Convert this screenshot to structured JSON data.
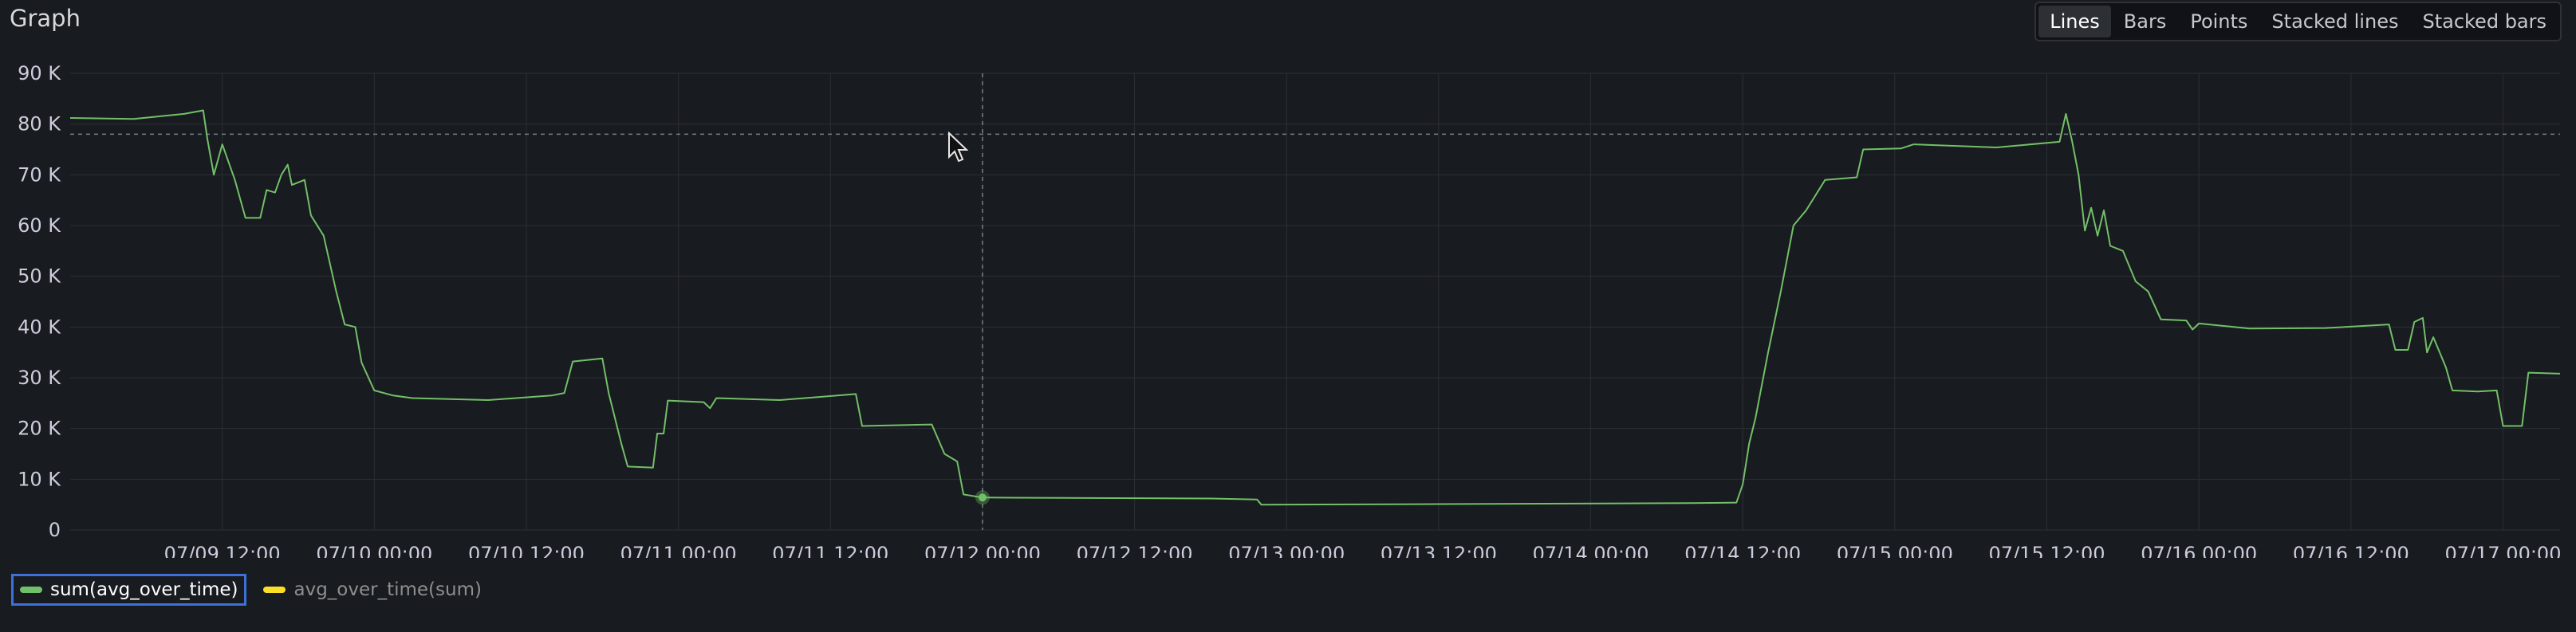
{
  "panel": {
    "title": "Graph",
    "modes": [
      "Lines",
      "Bars",
      "Points",
      "Stacked lines",
      "Stacked bars"
    ],
    "active_mode": "Lines"
  },
  "colors": {
    "background": "#181b1f",
    "grid": "#2c2f36",
    "series_green": "#73bf69",
    "series_yellow": "#fade2a",
    "legend_selected_border": "#3d71d9"
  },
  "chart_data": {
    "type": "line",
    "x_axis": {
      "type": "time",
      "range": [
        "2022-07-09 00:00",
        "2022-07-17 04:30"
      ],
      "ticks": [
        {
          "t": "2022-07-09 12:00",
          "label": "07/09 12:00"
        },
        {
          "t": "2022-07-10 00:00",
          "label": "07/10 00:00"
        },
        {
          "t": "2022-07-10 12:00",
          "label": "07/10 12:00"
        },
        {
          "t": "2022-07-11 00:00",
          "label": "07/11 00:00"
        },
        {
          "t": "2022-07-11 12:00",
          "label": "07/11 12:00"
        },
        {
          "t": "2022-07-12 00:00",
          "label": "07/12 00:00"
        },
        {
          "t": "2022-07-12 12:00",
          "label": "07/12 12:00"
        },
        {
          "t": "2022-07-13 00:00",
          "label": "07/13 00:00"
        },
        {
          "t": "2022-07-13 12:00",
          "label": "07/13 12:00"
        },
        {
          "t": "2022-07-14 00:00",
          "label": "07/14 00:00"
        },
        {
          "t": "2022-07-14 12:00",
          "label": "07/14 12:00"
        },
        {
          "t": "2022-07-15 00:00",
          "label": "07/15 00:00"
        },
        {
          "t": "2022-07-15 12:00",
          "label": "07/15 12:00"
        },
        {
          "t": "2022-07-16 00:00",
          "label": "07/16 00:00"
        },
        {
          "t": "2022-07-16 12:00",
          "label": "07/16 12:00"
        },
        {
          "t": "2022-07-17 00:00",
          "label": "07/17 00:00"
        }
      ]
    },
    "y_axis": {
      "range": [
        0,
        90000
      ],
      "ticks": [
        {
          "v": 0,
          "label": "0"
        },
        {
          "v": 10000,
          "label": "10 K"
        },
        {
          "v": 20000,
          "label": "20 K"
        },
        {
          "v": 30000,
          "label": "30 K"
        },
        {
          "v": 40000,
          "label": "40 K"
        },
        {
          "v": 50000,
          "label": "50 K"
        },
        {
          "v": 60000,
          "label": "60 K"
        },
        {
          "v": 70000,
          "label": "70 K"
        },
        {
          "v": 80000,
          "label": "80 K"
        },
        {
          "v": 90000,
          "label": "90 K"
        }
      ]
    },
    "grid": true,
    "hover": {
      "t": "2022-07-12 00:00",
      "value": 6400,
      "threshold_value": 78000
    },
    "legend_position": "bottom-left",
    "series": [
      {
        "name": "sum(avg_over_time)",
        "color": "#73bf69",
        "selected": true,
        "points": [
          [
            "2022-07-09 00:00",
            81200
          ],
          [
            "2022-07-09 05:00",
            81000
          ],
          [
            "2022-07-09 09:00",
            82000
          ],
          [
            "2022-07-09 10:30",
            82700
          ],
          [
            "2022-07-09 10:50",
            77000
          ],
          [
            "2022-07-09 11:20",
            70000
          ],
          [
            "2022-07-09 12:00",
            76000
          ],
          [
            "2022-07-09 13:00",
            69000
          ],
          [
            "2022-07-09 13:50",
            61500
          ],
          [
            "2022-07-09 15:00",
            61500
          ],
          [
            "2022-07-09 15:30",
            67000
          ],
          [
            "2022-07-09 16:10",
            66500
          ],
          [
            "2022-07-09 16:40",
            70000
          ],
          [
            "2022-07-09 17:10",
            72000
          ],
          [
            "2022-07-09 17:30",
            68000
          ],
          [
            "2022-07-09 18:30",
            69000
          ],
          [
            "2022-07-09 19:00",
            62000
          ],
          [
            "2022-07-09 20:00",
            58000
          ],
          [
            "2022-07-09 21:00",
            47000
          ],
          [
            "2022-07-09 21:40",
            40500
          ],
          [
            "2022-07-09 22:30",
            40000
          ],
          [
            "2022-07-09 23:00",
            33000
          ],
          [
            "2022-07-10 00:00",
            27500
          ],
          [
            "2022-07-10 01:30",
            26500
          ],
          [
            "2022-07-10 03:00",
            26000
          ],
          [
            "2022-07-10 09:00",
            25600
          ],
          [
            "2022-07-10 14:00",
            26500
          ],
          [
            "2022-07-10 15:00",
            27000
          ],
          [
            "2022-07-10 15:40",
            33200
          ],
          [
            "2022-07-10 18:00",
            33800
          ],
          [
            "2022-07-10 18:30",
            27000
          ],
          [
            "2022-07-10 19:30",
            17000
          ],
          [
            "2022-07-10 20:00",
            12500
          ],
          [
            "2022-07-10 22:00",
            12300
          ],
          [
            "2022-07-10 22:20",
            19000
          ],
          [
            "2022-07-10 22:50",
            19000
          ],
          [
            "2022-07-10 23:10",
            25500
          ],
          [
            "2022-07-11 02:00",
            25200
          ],
          [
            "2022-07-11 02:30",
            24000
          ],
          [
            "2022-07-11 03:00",
            26000
          ],
          [
            "2022-07-11 08:00",
            25600
          ],
          [
            "2022-07-11 14:00",
            26800
          ],
          [
            "2022-07-11 14:30",
            20500
          ],
          [
            "2022-07-11 20:00",
            20800
          ],
          [
            "2022-07-11 21:00",
            15000
          ],
          [
            "2022-07-11 22:00",
            13500
          ],
          [
            "2022-07-11 22:30",
            7000
          ],
          [
            "2022-07-12 00:00",
            6400
          ],
          [
            "2022-07-12 18:00",
            6200
          ],
          [
            "2022-07-12 21:40",
            6000
          ],
          [
            "2022-07-12 22:00",
            5000
          ],
          [
            "2022-07-13 12:00",
            5100
          ],
          [
            "2022-07-14 08:00",
            5300
          ],
          [
            "2022-07-14 11:30",
            5400
          ],
          [
            "2022-07-14 12:00",
            9000
          ],
          [
            "2022-07-14 12:30",
            17000
          ],
          [
            "2022-07-14 13:00",
            22000
          ],
          [
            "2022-07-14 14:00",
            35000
          ],
          [
            "2022-07-14 15:00",
            47000
          ],
          [
            "2022-07-14 16:00",
            60000
          ],
          [
            "2022-07-14 17:00",
            63000
          ],
          [
            "2022-07-14 18:30",
            69000
          ],
          [
            "2022-07-14 21:00",
            69500
          ],
          [
            "2022-07-14 21:30",
            75000
          ],
          [
            "2022-07-15 00:30",
            75200
          ],
          [
            "2022-07-15 01:30",
            76000
          ],
          [
            "2022-07-15 08:00",
            75400
          ],
          [
            "2022-07-15 13:00",
            76500
          ],
          [
            "2022-07-15 13:30",
            82000
          ],
          [
            "2022-07-15 14:00",
            76500
          ],
          [
            "2022-07-15 14:30",
            70000
          ],
          [
            "2022-07-15 15:00",
            59000
          ],
          [
            "2022-07-15 15:30",
            63500
          ],
          [
            "2022-07-15 16:00",
            58000
          ],
          [
            "2022-07-15 16:30",
            63000
          ],
          [
            "2022-07-15 17:00",
            56000
          ],
          [
            "2022-07-15 18:00",
            55000
          ],
          [
            "2022-07-15 19:00",
            49000
          ],
          [
            "2022-07-15 20:00",
            47000
          ],
          [
            "2022-07-15 21:00",
            41500
          ],
          [
            "2022-07-15 23:00",
            41300
          ],
          [
            "2022-07-15 23:30",
            39500
          ],
          [
            "2022-07-16 00:00",
            40700
          ],
          [
            "2022-07-16 04:00",
            39700
          ],
          [
            "2022-07-16 10:00",
            39800
          ],
          [
            "2022-07-16 15:00",
            40500
          ],
          [
            "2022-07-16 15:30",
            35500
          ],
          [
            "2022-07-16 16:30",
            35500
          ],
          [
            "2022-07-16 17:00",
            41000
          ],
          [
            "2022-07-16 17:40",
            41800
          ],
          [
            "2022-07-16 18:00",
            35000
          ],
          [
            "2022-07-16 18:30",
            38000
          ],
          [
            "2022-07-16 19:00",
            35000
          ],
          [
            "2022-07-16 19:30",
            32000
          ],
          [
            "2022-07-16 20:00",
            27500
          ],
          [
            "2022-07-16 22:00",
            27300
          ],
          [
            "2022-07-16 23:30",
            27500
          ],
          [
            "2022-07-17 00:00",
            20500
          ],
          [
            "2022-07-17 01:30",
            20500
          ],
          [
            "2022-07-17 02:00",
            31000
          ],
          [
            "2022-07-17 04:30",
            30800
          ]
        ]
      },
      {
        "name": "avg_over_time(sum)",
        "color": "#fade2a",
        "selected": false,
        "points": []
      }
    ]
  }
}
